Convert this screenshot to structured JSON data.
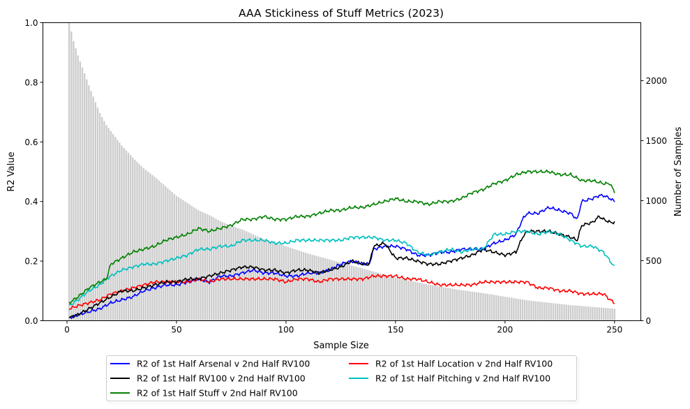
{
  "chart_data": {
    "type": "line",
    "title": "AAA Stickiness of Stuff Metrics (2023)",
    "xlabel": "Sample Size",
    "ylabel": "R2 Value",
    "y2label": "Number of Samples",
    "xlim": [
      -11,
      262
    ],
    "ylim": [
      0,
      1.0
    ],
    "y2lim": [
      0,
      2483
    ],
    "xticks": [
      0,
      50,
      100,
      150,
      200,
      250
    ],
    "yticks": [
      0.0,
      0.2,
      0.4,
      0.6,
      0.8,
      1.0
    ],
    "y2ticks": [
      0,
      500,
      1000,
      1500,
      2000
    ],
    "legend_position": "bottom-center",
    "bar_color": "#cccccc",
    "bars": {
      "name": "Number of Samples",
      "x_anchor": [
        1,
        2,
        3,
        5,
        8,
        10,
        13,
        15,
        18,
        20,
        25,
        30,
        35,
        40,
        45,
        50,
        55,
        60,
        65,
        70,
        75,
        80,
        90,
        100,
        110,
        120,
        130,
        140,
        150,
        160,
        170,
        180,
        190,
        200,
        210,
        220,
        230,
        240,
        250
      ],
      "y_anchor": [
        2483,
        2410,
        2330,
        2210,
        2060,
        1960,
        1820,
        1730,
        1630,
        1580,
        1460,
        1360,
        1270,
        1200,
        1120,
        1040,
        980,
        920,
        880,
        830,
        790,
        760,
        680,
        620,
        560,
        510,
        460,
        410,
        360,
        320,
        285,
        255,
        230,
        200,
        170,
        150,
        130,
        115,
        100
      ]
    },
    "series": [
      {
        "name": "R2 of 1st Half Arsenal v 2nd Half RV100",
        "color": "#0000ff",
        "x": [
          1,
          5,
          10,
          15,
          20,
          25,
          30,
          35,
          40,
          45,
          50,
          55,
          60,
          65,
          70,
          75,
          80,
          85,
          90,
          95,
          100,
          105,
          110,
          115,
          120,
          125,
          130,
          135,
          138,
          140,
          145,
          150,
          155,
          160,
          165,
          170,
          175,
          180,
          185,
          190,
          195,
          200,
          205,
          208,
          210,
          215,
          220,
          225,
          230,
          233,
          235,
          240,
          243,
          245,
          248,
          250
        ],
        "y": [
          0.01,
          0.02,
          0.03,
          0.04,
          0.06,
          0.07,
          0.08,
          0.1,
          0.11,
          0.12,
          0.12,
          0.13,
          0.14,
          0.13,
          0.15,
          0.15,
          0.16,
          0.17,
          0.16,
          0.16,
          0.15,
          0.15,
          0.16,
          0.16,
          0.17,
          0.19,
          0.2,
          0.19,
          0.19,
          0.24,
          0.25,
          0.25,
          0.24,
          0.22,
          0.22,
          0.23,
          0.23,
          0.24,
          0.24,
          0.24,
          0.26,
          0.27,
          0.29,
          0.34,
          0.36,
          0.36,
          0.38,
          0.37,
          0.36,
          0.34,
          0.4,
          0.41,
          0.42,
          0.42,
          0.41,
          0.4
        ]
      },
      {
        "name": "R2 of 1st Half Location v 2nd Half RV100",
        "color": "#ff0000",
        "x": [
          1,
          5,
          10,
          15,
          20,
          25,
          30,
          35,
          40,
          45,
          50,
          55,
          60,
          65,
          70,
          75,
          80,
          85,
          90,
          95,
          100,
          105,
          110,
          115,
          120,
          125,
          130,
          135,
          140,
          145,
          150,
          155,
          160,
          165,
          170,
          175,
          180,
          185,
          190,
          195,
          200,
          205,
          210,
          215,
          220,
          225,
          230,
          235,
          240,
          245,
          248,
          250
        ],
        "y": [
          0.04,
          0.05,
          0.06,
          0.07,
          0.09,
          0.1,
          0.11,
          0.12,
          0.13,
          0.13,
          0.13,
          0.13,
          0.14,
          0.13,
          0.14,
          0.14,
          0.14,
          0.14,
          0.14,
          0.14,
          0.13,
          0.14,
          0.14,
          0.13,
          0.14,
          0.14,
          0.14,
          0.14,
          0.15,
          0.15,
          0.15,
          0.14,
          0.14,
          0.13,
          0.12,
          0.12,
          0.12,
          0.12,
          0.13,
          0.13,
          0.13,
          0.13,
          0.13,
          0.11,
          0.11,
          0.1,
          0.1,
          0.09,
          0.09,
          0.09,
          0.07,
          0.06
        ]
      },
      {
        "name": "R2 of 1st Half RV100 v 2nd Half RV100",
        "color": "#000000",
        "x": [
          1,
          5,
          10,
          15,
          20,
          25,
          30,
          35,
          40,
          45,
          50,
          55,
          60,
          65,
          70,
          75,
          80,
          85,
          90,
          95,
          100,
          105,
          110,
          115,
          120,
          125,
          130,
          135,
          138,
          140,
          145,
          150,
          155,
          160,
          165,
          170,
          175,
          180,
          185,
          190,
          195,
          200,
          205,
          208,
          210,
          215,
          220,
          225,
          230,
          233,
          235,
          240,
          243,
          245,
          248,
          250
        ],
        "y": [
          0.01,
          0.02,
          0.04,
          0.06,
          0.08,
          0.1,
          0.1,
          0.11,
          0.12,
          0.13,
          0.13,
          0.14,
          0.14,
          0.15,
          0.16,
          0.17,
          0.18,
          0.18,
          0.17,
          0.17,
          0.16,
          0.17,
          0.17,
          0.16,
          0.17,
          0.18,
          0.2,
          0.19,
          0.19,
          0.25,
          0.26,
          0.21,
          0.21,
          0.2,
          0.19,
          0.19,
          0.2,
          0.21,
          0.22,
          0.24,
          0.23,
          0.22,
          0.23,
          0.28,
          0.3,
          0.3,
          0.3,
          0.29,
          0.28,
          0.27,
          0.32,
          0.33,
          0.35,
          0.34,
          0.33,
          0.33
        ]
      },
      {
        "name": "R2 of 1st Half Pitching v 2nd Half RV100",
        "color": "#00bfbf",
        "x": [
          1,
          5,
          10,
          15,
          18,
          20,
          25,
          30,
          35,
          40,
          45,
          50,
          55,
          60,
          65,
          70,
          75,
          80,
          85,
          90,
          95,
          100,
          105,
          110,
          115,
          120,
          125,
          130,
          135,
          140,
          145,
          150,
          155,
          160,
          165,
          170,
          175,
          180,
          185,
          190,
          195,
          200,
          205,
          210,
          215,
          220,
          225,
          230,
          235,
          240,
          245,
          248,
          250
        ],
        "y": [
          0.05,
          0.07,
          0.1,
          0.12,
          0.14,
          0.15,
          0.17,
          0.18,
          0.19,
          0.19,
          0.2,
          0.21,
          0.22,
          0.24,
          0.24,
          0.25,
          0.25,
          0.27,
          0.27,
          0.27,
          0.26,
          0.26,
          0.27,
          0.27,
          0.27,
          0.27,
          0.27,
          0.28,
          0.28,
          0.28,
          0.27,
          0.27,
          0.26,
          0.23,
          0.22,
          0.23,
          0.24,
          0.23,
          0.24,
          0.24,
          0.29,
          0.29,
          0.3,
          0.3,
          0.29,
          0.3,
          0.29,
          0.27,
          0.25,
          0.25,
          0.23,
          0.2,
          0.18
        ]
      },
      {
        "name": "R2 of 1st Half Stuff v 2nd Half RV100",
        "color": "#008000",
        "x": [
          1,
          5,
          10,
          15,
          18,
          20,
          25,
          30,
          35,
          40,
          45,
          50,
          55,
          60,
          65,
          70,
          75,
          80,
          85,
          90,
          95,
          100,
          105,
          110,
          115,
          120,
          125,
          130,
          135,
          140,
          145,
          150,
          155,
          160,
          165,
          170,
          175,
          180,
          185,
          190,
          195,
          200,
          205,
          210,
          215,
          220,
          225,
          230,
          235,
          240,
          245,
          248,
          250
        ],
        "y": [
          0.06,
          0.08,
          0.11,
          0.13,
          0.14,
          0.19,
          0.21,
          0.23,
          0.24,
          0.25,
          0.27,
          0.28,
          0.29,
          0.31,
          0.3,
          0.31,
          0.32,
          0.34,
          0.34,
          0.35,
          0.34,
          0.34,
          0.35,
          0.35,
          0.36,
          0.37,
          0.37,
          0.38,
          0.38,
          0.39,
          0.4,
          0.41,
          0.4,
          0.4,
          0.39,
          0.4,
          0.4,
          0.41,
          0.43,
          0.44,
          0.46,
          0.47,
          0.49,
          0.5,
          0.5,
          0.5,
          0.49,
          0.49,
          0.47,
          0.47,
          0.46,
          0.46,
          0.43
        ]
      }
    ],
    "legend_rows": [
      [
        "R2 of 1st Half Arsenal v 2nd Half RV100",
        "R2 of 1st Half Location v 2nd Half RV100"
      ],
      [
        "R2 of 1st Half RV100 v 2nd Half RV100",
        "R2 of 1st Half Pitching v 2nd Half RV100"
      ],
      [
        "R2 of 1st Half Stuff v 2nd Half RV100"
      ]
    ]
  }
}
